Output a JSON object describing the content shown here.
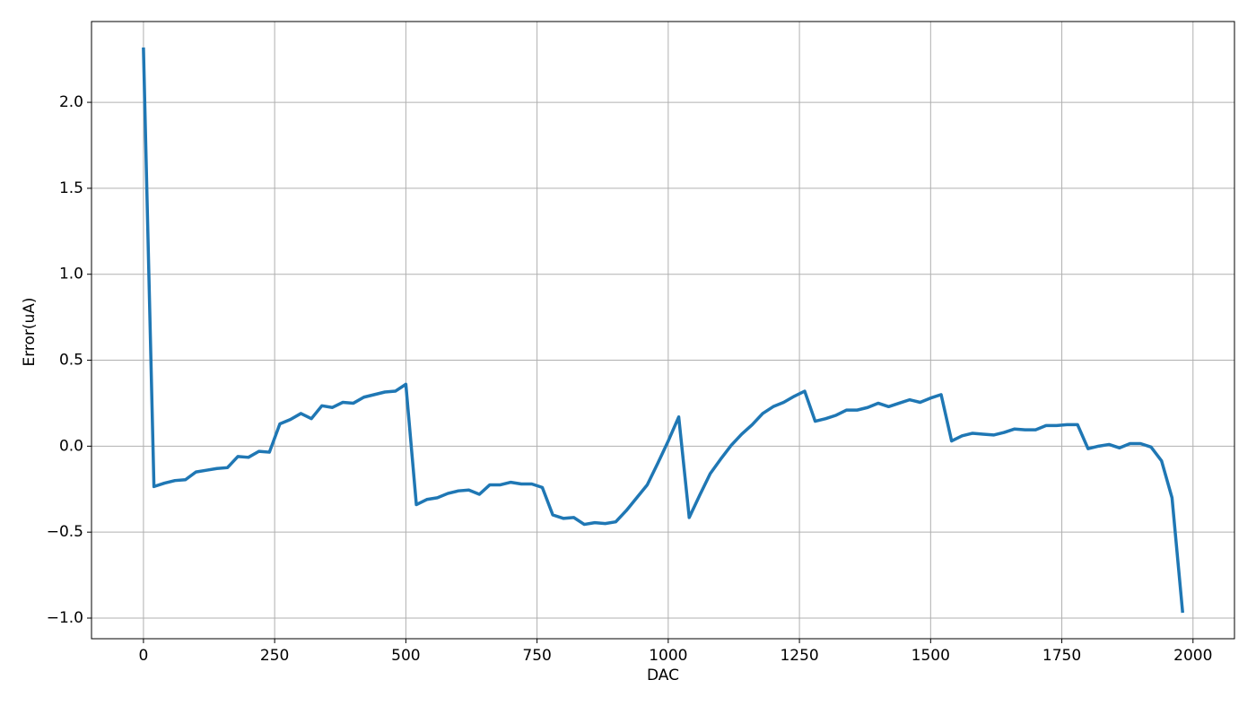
{
  "chart_data": {
    "type": "line",
    "xlabel": "DAC",
    "ylabel": "Error(uA)",
    "x": [
      0,
      20,
      40,
      60,
      80,
      100,
      120,
      140,
      160,
      180,
      200,
      220,
      240,
      260,
      280,
      300,
      320,
      340,
      360,
      380,
      400,
      420,
      440,
      460,
      480,
      500,
      520,
      540,
      560,
      580,
      600,
      620,
      640,
      660,
      680,
      700,
      720,
      740,
      760,
      780,
      800,
      820,
      840,
      860,
      880,
      900,
      920,
      940,
      960,
      980,
      1000,
      1020,
      1040,
      1060,
      1080,
      1100,
      1120,
      1140,
      1160,
      1180,
      1200,
      1220,
      1240,
      1260,
      1280,
      1300,
      1320,
      1340,
      1360,
      1380,
      1400,
      1420,
      1440,
      1460,
      1480,
      1500,
      1520,
      1540,
      1560,
      1580,
      1600,
      1620,
      1640,
      1660,
      1680,
      1700,
      1720,
      1740,
      1760,
      1780,
      1800,
      1820,
      1840,
      1860,
      1880,
      1900,
      1920,
      1940,
      1960,
      1980
    ],
    "series": [
      {
        "color": "#1f77b4",
        "values": [
          2.31,
          -0.235,
          -0.215,
          -0.2,
          -0.195,
          -0.15,
          -0.14,
          -0.13,
          -0.125,
          -0.06,
          -0.065,
          -0.03,
          -0.035,
          0.13,
          0.155,
          0.19,
          0.16,
          0.235,
          0.225,
          0.255,
          0.25,
          0.285,
          0.3,
          0.315,
          0.32,
          0.36,
          -0.34,
          -0.31,
          -0.3,
          -0.275,
          -0.26,
          -0.255,
          -0.28,
          -0.225,
          -0.225,
          -0.21,
          -0.22,
          -0.22,
          -0.24,
          -0.4,
          -0.42,
          -0.415,
          -0.455,
          -0.445,
          -0.45,
          -0.44,
          -0.375,
          -0.3,
          -0.225,
          -0.1,
          0.03,
          0.17,
          -0.415,
          -0.285,
          -0.16,
          -0.075,
          0.005,
          0.07,
          0.125,
          0.19,
          0.23,
          0.255,
          0.29,
          0.32,
          0.145,
          0.16,
          0.18,
          0.21,
          0.21,
          0.225,
          0.25,
          0.23,
          0.25,
          0.27,
          0.255,
          0.28,
          0.3,
          0.03,
          0.06,
          0.075,
          0.07,
          0.065,
          0.08,
          0.1,
          0.095,
          0.095,
          0.12,
          0.12,
          0.125,
          0.125,
          -0.015,
          0.0,
          0.01,
          -0.01,
          0.015,
          0.015,
          -0.005,
          -0.085,
          -0.3,
          -0.96
        ]
      }
    ],
    "xlim": [
      -99,
      2079
    ],
    "xticks": [
      0,
      250,
      500,
      750,
      1000,
      1250,
      1500,
      1750,
      2000
    ],
    "ylim": [
      -1.12,
      2.47
    ],
    "yticks": [
      {
        "value": -1,
        "label": "−1.0"
      },
      {
        "value": -0.5,
        "label": "−0.5"
      },
      {
        "value": 0,
        "label": "0.0"
      },
      {
        "value": 0.5,
        "label": "0.5"
      },
      {
        "value": 1,
        "label": "1.0"
      },
      {
        "value": 1.5,
        "label": "1.5"
      },
      {
        "value": 2,
        "label": "2.0"
      }
    ],
    "grid": true
  }
}
